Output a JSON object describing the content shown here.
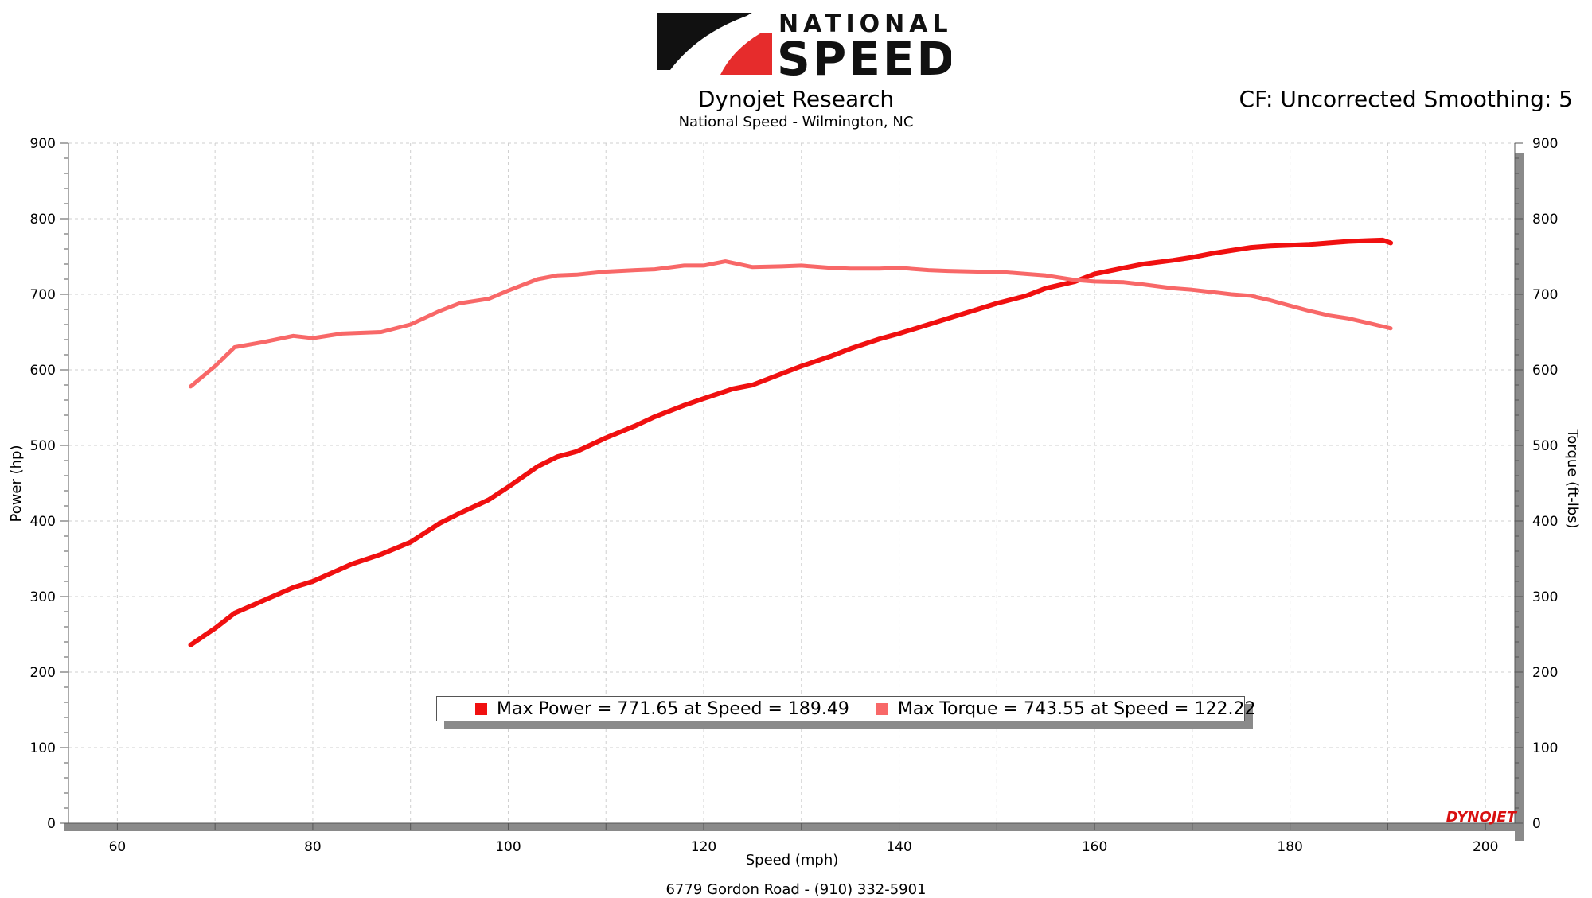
{
  "header": {
    "logo_text_top": "NATIONAL",
    "logo_text_bottom": "SPEED",
    "title": "Dynojet Research",
    "subtitle": "National Speed - Wilmington, NC",
    "cf_label": "CF: Uncorrected Smoothing: 5"
  },
  "footer": {
    "text": "6779 Gordon Road - (910) 332-5901"
  },
  "brand_mark": "DYNOJET",
  "colors": {
    "power": "#f01010",
    "torque": "#f86868",
    "logo_red": "#e62c2c",
    "logo_black": "#111111"
  },
  "chart_data": {
    "type": "line",
    "xlabel": "Speed (mph)",
    "ylabel_left": "Power (hp)",
    "ylabel_right": "Torque (ft-lbs)",
    "xlim": [
      55,
      203
    ],
    "ylim": [
      0,
      900
    ],
    "x_ticks": [
      60,
      80,
      100,
      120,
      140,
      160,
      180,
      200
    ],
    "y_ticks": [
      0,
      100,
      200,
      300,
      400,
      500,
      600,
      700,
      800,
      900
    ],
    "grid": true,
    "legend_position": "bottom-center",
    "legend": [
      {
        "label": "Max Power = 771.65 at Speed = 189.49",
        "color": "#f01010"
      },
      {
        "label": "Max Torque = 743.55 at Speed = 122.22",
        "color": "#f86868"
      }
    ],
    "series": [
      {
        "name": "Power",
        "axis": "left",
        "x": [
          67.5,
          70,
          72,
          75,
          78,
          80,
          84,
          87,
          90,
          93,
          95,
          98,
          100,
          103,
          105,
          107,
          110,
          113,
          115,
          118,
          120,
          123,
          125,
          127,
          130,
          133,
          135,
          138,
          140,
          143,
          145,
          148,
          150,
          153,
          155,
          158,
          160,
          163,
          165,
          168,
          170,
          172,
          174,
          176,
          178,
          180,
          182,
          184,
          186,
          188,
          189.49,
          190.3
        ],
        "y": [
          236,
          258,
          278,
          295,
          312,
          320,
          343,
          356,
          372,
          397,
          410,
          428,
          445,
          472,
          485,
          492,
          510,
          526,
          538,
          553,
          562,
          575,
          580,
          590,
          605,
          618,
          628,
          641,
          648,
          660,
          668,
          680,
          688,
          698,
          708,
          717,
          727,
          735,
          740,
          745,
          749,
          754,
          758,
          762,
          764,
          765,
          766,
          768,
          770,
          771,
          771.65,
          768
        ]
      },
      {
        "name": "Torque",
        "axis": "right",
        "x": [
          67.5,
          70,
          72,
          75,
          78,
          80,
          83,
          87,
          90,
          93,
          95,
          98,
          100,
          103,
          105,
          107,
          110,
          113,
          115,
          118,
          120,
          122.22,
          125,
          128,
          130,
          133,
          135,
          138,
          140,
          143,
          145,
          148,
          150,
          153,
          155,
          158,
          160,
          163,
          165,
          168,
          170,
          172,
          174,
          176,
          178,
          180,
          182,
          184,
          186,
          188,
          190.3
        ],
        "y": [
          578,
          605,
          630,
          637,
          645,
          642,
          648,
          650,
          660,
          678,
          688,
          694,
          705,
          720,
          725,
          726,
          730,
          732,
          733,
          738,
          738,
          743.55,
          736,
          737,
          738,
          735,
          734,
          734,
          735,
          732,
          731,
          730,
          730,
          727,
          725,
          719,
          717,
          716,
          713,
          708,
          706,
          703,
          700,
          698,
          692,
          685,
          678,
          672,
          668,
          662,
          655
        ]
      }
    ]
  }
}
